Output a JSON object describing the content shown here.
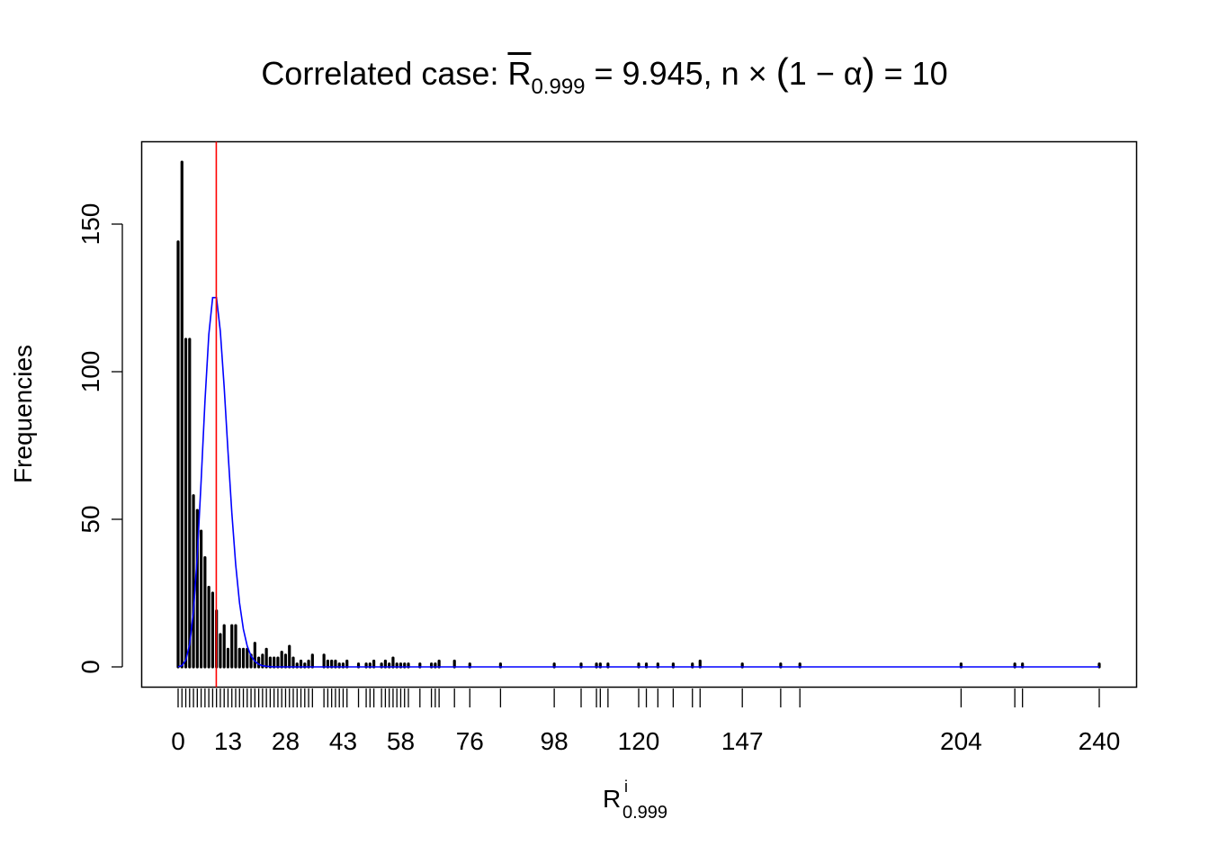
{
  "title": {
    "prefix": "Correlated case: ",
    "r_symbol": "R",
    "r_subscript": "0.999",
    "mid": " = 9.945, n ",
    "times": "×",
    "paren_open": "(",
    "inner": "1 − α",
    "paren_close": ")",
    "suffix": " = 10"
  },
  "chart_data": {
    "type": "bar",
    "xlabel": {
      "symbol": "R",
      "superscript": "i",
      "subscript": "0.999"
    },
    "ylabel": "Frequencies",
    "xlim": [
      0,
      240
    ],
    "ylim": [
      0,
      171
    ],
    "x_ticks": [
      0,
      13,
      28,
      43,
      58,
      76,
      98,
      120,
      147,
      204,
      240
    ],
    "y_ticks": [
      0,
      50,
      100,
      150
    ],
    "grid": false,
    "rug": true,
    "series": [
      {
        "style": "histogram-lines",
        "color": "#000000",
        "x": [
          0,
          1,
          2,
          3,
          4,
          5,
          6,
          7,
          8,
          9,
          10,
          11,
          12,
          13,
          14,
          15,
          16,
          17,
          18,
          19,
          20,
          21,
          22,
          23,
          24,
          25,
          26,
          27,
          28,
          29,
          30,
          31,
          32,
          33,
          34,
          35,
          38,
          39,
          40,
          41,
          42,
          43,
          44,
          47,
          49,
          50,
          51,
          53,
          54,
          55,
          56,
          57,
          58,
          59,
          60,
          63,
          66,
          67,
          68,
          72,
          76,
          84,
          98,
          105,
          109,
          110,
          112,
          120,
          122,
          125,
          129,
          134,
          136,
          147,
          157,
          162,
          204,
          218,
          220,
          240
        ],
        "y": [
          144,
          171,
          111,
          111,
          58,
          53,
          46,
          37,
          27,
          25,
          19,
          11,
          14,
          6,
          14,
          14,
          6,
          6,
          6,
          4,
          8,
          3,
          4,
          6,
          3,
          3,
          3,
          5,
          4,
          7,
          3,
          1,
          2,
          1,
          2,
          4,
          4,
          2,
          2,
          2,
          1,
          1,
          2,
          1,
          1,
          1,
          2,
          1,
          2,
          1,
          3,
          1,
          1,
          1,
          1,
          1,
          1,
          1,
          2,
          2,
          1,
          1,
          1,
          1,
          1,
          1,
          1,
          1,
          1,
          1,
          1,
          1,
          2,
          1,
          1,
          1,
          1,
          1,
          1,
          1
        ]
      },
      {
        "style": "line",
        "color": "#0000ff",
        "x": [
          0,
          1,
          2,
          3,
          4,
          5,
          6,
          7,
          8,
          9,
          10,
          11,
          12,
          13,
          14,
          15,
          16,
          17,
          18,
          19,
          20,
          21,
          22,
          23,
          24,
          25,
          240
        ],
        "y": [
          0.05,
          0.45,
          2.27,
          7.57,
          18.92,
          37.83,
          63.06,
          90.08,
          112.6,
          125.1,
          125.1,
          113.7,
          94.8,
          72.9,
          52.1,
          34.7,
          21.7,
          12.8,
          7.1,
          3.7,
          1.9,
          0.9,
          0.4,
          0.2,
          0.1,
          0,
          0
        ]
      }
    ],
    "vline": {
      "x": 9.945,
      "color": "#ff0000"
    }
  }
}
